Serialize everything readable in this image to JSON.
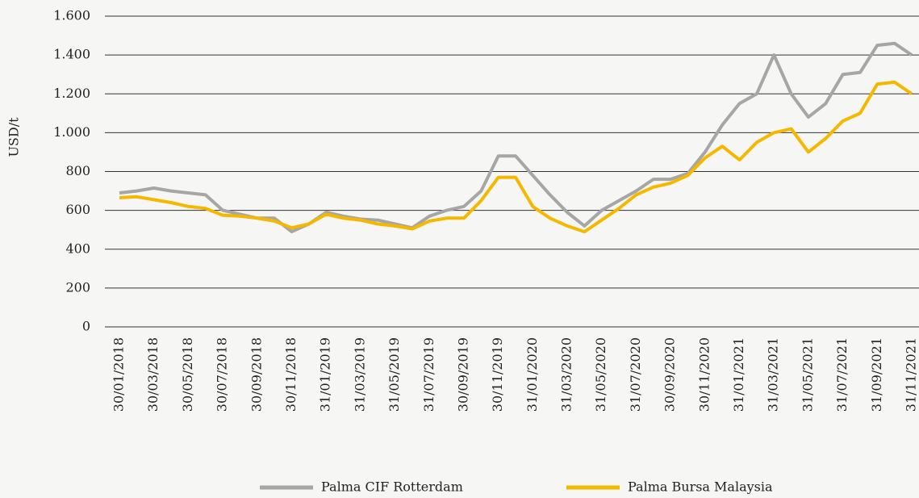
{
  "chart_data": {
    "type": "line",
    "y_label": "USD/t",
    "categories": [
      "30/01/2018",
      null,
      "30/03/2018",
      null,
      "30/05/2018",
      null,
      "30/07/2018",
      null,
      "30/09/2018",
      null,
      "30/11/2018",
      null,
      "31/01/2019",
      null,
      "31/03/2019",
      null,
      "31/05/2019",
      null,
      "31/07/2019",
      null,
      "30/09/2019",
      null,
      "30/11/2019",
      null,
      "31/01/2020",
      null,
      "31/03/2020",
      null,
      "31/05/2020",
      null,
      "31/07/2020",
      null,
      "30/09/2020",
      null,
      "30/11/2020",
      null,
      "31/01/2021",
      null,
      "31/03/2021",
      null,
      "31/05/2021",
      null,
      "31/07/2021",
      null,
      "31/09/2021",
      null,
      "31/11/2021"
    ],
    "series": [
      {
        "name": "Palma CIF Rotterdam",
        "color": "#a6a6a6",
        "values": [
          690,
          700,
          715,
          700,
          690,
          680,
          600,
          580,
          560,
          560,
          490,
          530,
          590,
          570,
          555,
          550,
          530,
          510,
          570,
          600,
          620,
          700,
          880,
          880,
          780,
          680,
          590,
          520,
          600,
          650,
          700,
          760,
          760,
          790,
          900,
          1040,
          1150,
          1200,
          1400,
          1200,
          1080,
          1150,
          1300,
          1310,
          1450,
          1460,
          1400
        ]
      },
      {
        "name": "Palma Bursa Malaysia",
        "color": "#f5b800",
        "values": [
          665,
          670,
          655,
          640,
          620,
          610,
          575,
          570,
          560,
          545,
          510,
          530,
          580,
          560,
          550,
          530,
          520,
          505,
          545,
          560,
          560,
          650,
          770,
          770,
          620,
          560,
          520,
          490,
          550,
          610,
          680,
          720,
          740,
          780,
          870,
          930,
          860,
          950,
          1000,
          1020,
          900,
          970,
          1060,
          1100,
          1250,
          1260,
          1200
        ]
      }
    ],
    "ylim": [
      0,
      1600
    ],
    "yticks": [
      0,
      200,
      400,
      600,
      800,
      {
        "value": 1000,
        "label": "1.000"
      },
      {
        "value": 1200,
        "label": "1.200"
      },
      {
        "value": 1400,
        "label": "1.400"
      },
      {
        "value": 1600,
        "label": "1.600"
      }
    ],
    "grid": true,
    "legend": "bottom"
  }
}
